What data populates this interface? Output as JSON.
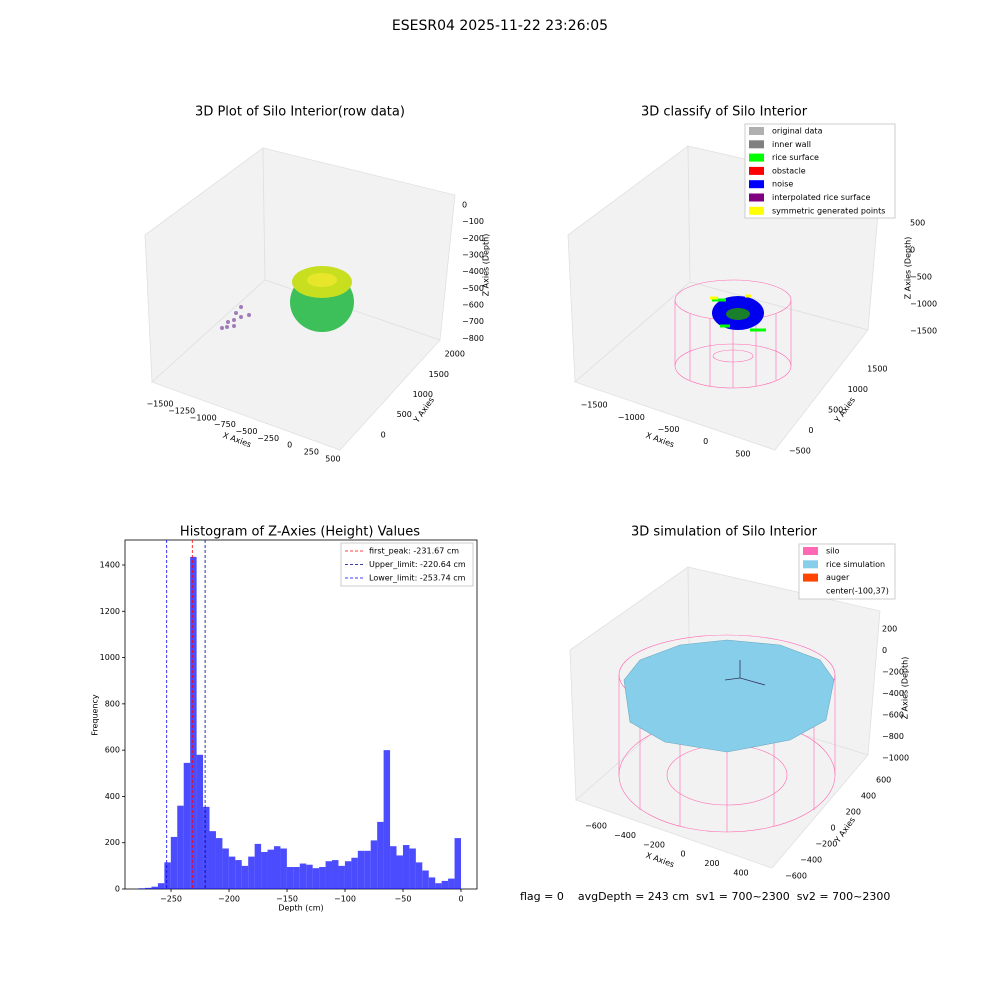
{
  "suptitle": "ESESR04 2025-11-22 23:26:05",
  "footer": "flag = 0    avgDepth = 243 cm  sv1 = 700~2300  sv2 = 700~2300",
  "chart_data": [
    {
      "type": "scatter3d",
      "title": "3D Plot of Silo Interior(row data)",
      "xlabel": "X Axies",
      "ylabel": "Y Axies",
      "zlabel": "Z Axies (Depth)",
      "xlim": [
        -1650,
        600
      ],
      "ylim": [
        -300,
        2200
      ],
      "zlim": [
        -870,
        60
      ],
      "xticks": [
        {
          "value": -1500,
          "label": "−1500"
        },
        {
          "value": -1250,
          "label": "−1250"
        },
        {
          "value": -1000,
          "label": "−1000"
        },
        {
          "value": -750,
          "label": "−750"
        },
        {
          "value": -500,
          "label": "−500"
        },
        {
          "value": -250,
          "label": "−250"
        },
        0,
        250,
        500
      ],
      "yticks": [
        0,
        500,
        1000,
        1500,
        2000
      ],
      "zticks": [
        0,
        {
          "value": -100,
          "label": "−100"
        },
        {
          "value": -200,
          "label": "−200"
        },
        {
          "value": -300,
          "label": "−300"
        },
        {
          "value": -400,
          "label": "−400"
        },
        {
          "value": -500,
          "label": "−500"
        },
        {
          "value": -600,
          "label": "−600"
        },
        {
          "value": -700,
          "label": "−700"
        },
        {
          "value": -800,
          "label": "−800"
        }
      ]
    },
    {
      "type": "scatter3d",
      "title": "3D classify of Silo Interior",
      "xlabel": "X Axies",
      "ylabel": "Y Axies",
      "zlabel": "Z Axies (Depth)",
      "xlim": [
        -1750,
        750
      ],
      "ylim": [
        -700,
        1700
      ],
      "zlim": [
        -1650,
        650
      ],
      "xticks": [
        {
          "value": -1500,
          "label": "−1500"
        },
        {
          "value": -1000,
          "label": "−1000"
        },
        {
          "value": -500,
          "label": "−500"
        },
        0,
        500
      ],
      "yticks": [
        {
          "value": -500,
          "label": "−500"
        },
        0,
        500,
        1000,
        1500
      ],
      "zticks": [
        500,
        0,
        {
          "value": -500,
          "label": "−500"
        },
        {
          "value": -1000,
          "label": "−1000"
        },
        {
          "value": -1500,
          "label": "−1500"
        }
      ],
      "legend_loc": "upper right",
      "legend": [
        {
          "name": "original data",
          "color": "#b0b0b0"
        },
        {
          "name": "inner wall",
          "color": "#808080"
        },
        {
          "name": "rice surface",
          "color": "#00ff00"
        },
        {
          "name": "obstacle",
          "color": "#ff0000"
        },
        {
          "name": "noise",
          "color": "#0000ff"
        },
        {
          "name": "interpolated rice surface",
          "color": "#800080"
        },
        {
          "name": "symmetric generated points",
          "color": "#ffff00"
        }
      ]
    },
    {
      "type": "histogram",
      "title": "Histogram of Z-Axies (Height) Values",
      "xlabel": "Depth (cm)",
      "ylabel": "Frequency",
      "color": "#0000ff",
      "xlim": [
        -289.7,
        13.8
      ],
      "ylim": [
        0,
        1508
      ],
      "xticks": [
        {
          "value": -250,
          "label": "−250"
        },
        {
          "value": -200,
          "label": "−200"
        },
        {
          "value": -150,
          "label": "−150"
        },
        {
          "value": -100,
          "label": "−100"
        },
        {
          "value": -50,
          "label": "−50"
        },
        0
      ],
      "yticks": [
        0,
        200,
        400,
        600,
        800,
        1000,
        1200,
        1400
      ],
      "bins": [
        -278,
        -272.44,
        -266.88,
        -261.32,
        -255.76,
        -250.2,
        -244.64,
        -239.08,
        -233.52,
        -227.96,
        -222.4,
        -216.84,
        -211.28,
        -205.72,
        -200.16,
        -194.6,
        -189.04,
        -183.48,
        -177.92,
        -172.36,
        -166.8,
        -161.24,
        -155.68,
        -150.12,
        -144.56,
        -139,
        -133.44,
        -127.88,
        -122.32,
        -116.76,
        -111.2,
        -105.64,
        -100.08,
        -94.52,
        -88.96,
        -83.4,
        -77.84,
        -72.28,
        -66.72,
        -61.16,
        -55.6,
        -50.04,
        -44.48,
        -38.92,
        -33.36,
        -27.8,
        -22.24,
        -16.68,
        -11.12,
        -5.56,
        0
      ],
      "counts": [
        3,
        5,
        10,
        25,
        115,
        225,
        360,
        545,
        1435,
        580,
        355,
        250,
        220,
        175,
        140,
        125,
        100,
        140,
        195,
        160,
        170,
        185,
        175,
        95,
        95,
        110,
        105,
        90,
        95,
        120,
        125,
        100,
        120,
        135,
        165,
        165,
        210,
        290,
        600,
        185,
        145,
        190,
        175,
        115,
        80,
        50,
        25,
        35,
        45,
        220
      ],
      "legend_loc": "upper right",
      "lines": [
        {
          "label": "first_peak: -231.67 cm",
          "value": -231.67,
          "color": "#ff0000"
        },
        {
          "label": "Upper_limit: -220.64 cm",
          "value": -220.64,
          "color": "#00008b"
        },
        {
          "label": "Lower_limit: -253.74 cm",
          "value": -253.74,
          "color": "#0000ff"
        }
      ]
    },
    {
      "type": "surface3d",
      "title": "3D simulation of Silo Interior",
      "xlabel": "X Axies",
      "ylabel": "Y Axies",
      "zlabel": "Z Axies (Depth)",
      "xlim": [
        -700,
        500
      ],
      "ylim": [
        -700,
        700
      ],
      "zlim": [
        -1100,
        300
      ],
      "xticks": [
        {
          "value": -600,
          "label": "−600"
        },
        {
          "value": -400,
          "label": "−400"
        },
        {
          "value": -200,
          "label": "−200"
        },
        0,
        200,
        400
      ],
      "yticks": [
        {
          "value": -600,
          "label": "−600"
        },
        {
          "value": -400,
          "label": "−400"
        },
        {
          "value": -200,
          "label": "−200"
        },
        0,
        200,
        400,
        600
      ],
      "zticks": [
        200,
        0,
        {
          "value": -200,
          "label": "−200"
        },
        {
          "value": -400,
          "label": "−400"
        },
        {
          "value": -600,
          "label": "−600"
        },
        {
          "value": -800,
          "label": "−800"
        },
        {
          "value": -1000,
          "label": "−1000"
        }
      ],
      "legend_loc": "upper right",
      "legend": [
        {
          "name": "silo",
          "color": "#ff69b4"
        },
        {
          "name": "rice simulation",
          "color": "#87ceeb"
        },
        {
          "name": "auger",
          "color": "#ff4500"
        },
        {
          "name": "center(-100,37)"
        }
      ]
    }
  ]
}
